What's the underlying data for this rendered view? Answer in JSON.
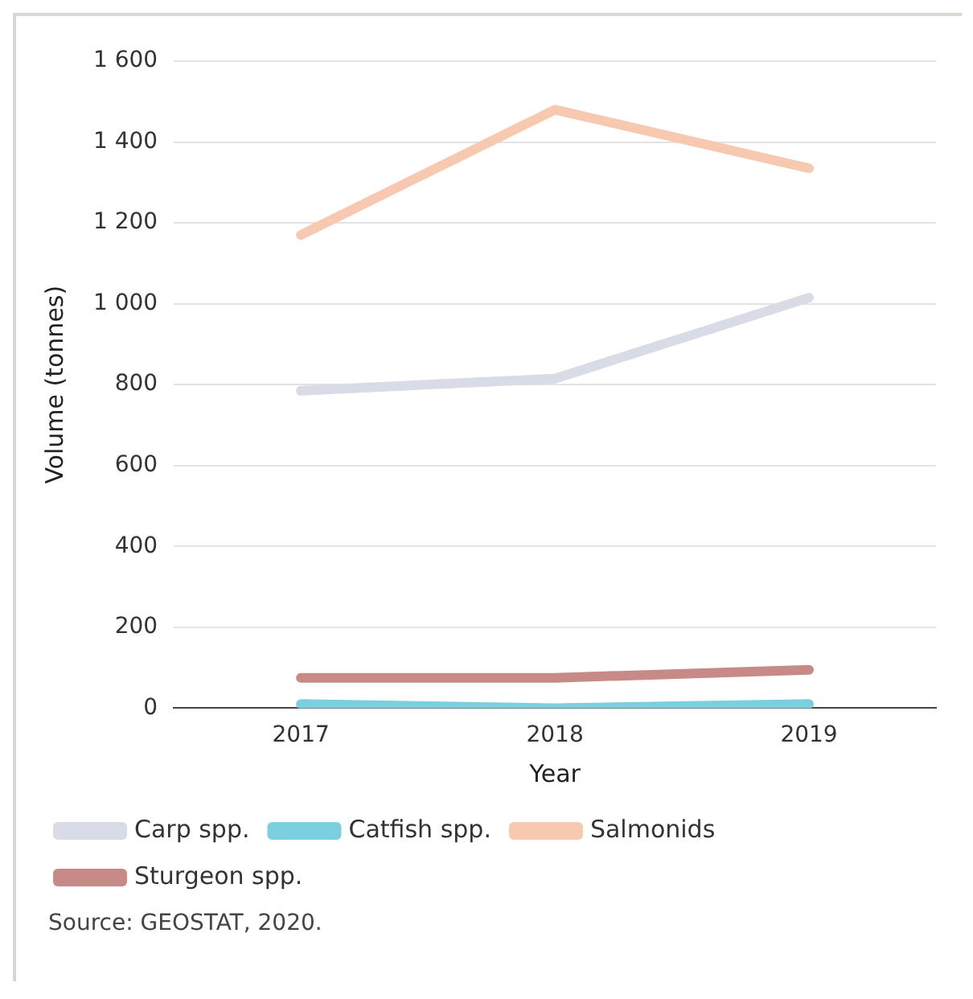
{
  "chart_data": {
    "type": "line",
    "xlabel": "Year",
    "ylabel": "Volume (tonnes)",
    "categories": [
      "2017",
      "2018",
      "2019"
    ],
    "series": [
      {
        "name": "Carp spp.",
        "color": "#d9dbe7",
        "values": [
          785,
          815,
          1015
        ]
      },
      {
        "name": "Catfish spp.",
        "color": "#7ccfdf",
        "values": [
          10,
          0,
          10
        ]
      },
      {
        "name": "Salmonids",
        "color": "#f6c9b0",
        "values": [
          1170,
          1480,
          1335
        ]
      },
      {
        "name": "Sturgeon spp.",
        "color": "#c88a87",
        "values": [
          75,
          75,
          95
        ]
      }
    ],
    "ylim": [
      0,
      1600
    ],
    "yticks": [
      0,
      200,
      400,
      600,
      800,
      {
        "value": 1000,
        "label": "1 000"
      },
      {
        "value": 1200,
        "label": "1 200"
      },
      {
        "value": 1400,
        "label": "1 400"
      },
      {
        "value": 1600,
        "label": "1 600"
      }
    ],
    "grid": "y",
    "legend": "bottom",
    "marker": "none",
    "line_style": "solid",
    "annotations": [
      "Source: GEOSTAT, 2020."
    ]
  }
}
